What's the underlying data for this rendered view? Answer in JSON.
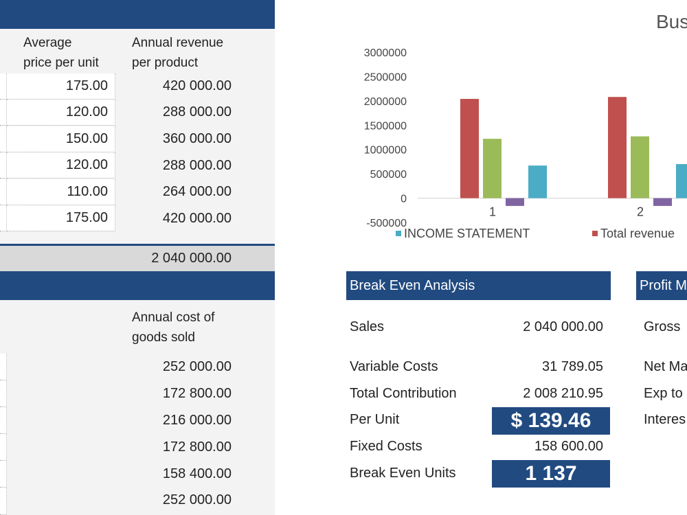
{
  "revenue_table": {
    "col_price_line1": "Average",
    "col_price_line2": "price per unit",
    "col_revenue_line1": "Annual revenue",
    "col_revenue_line2": "per product",
    "rows": [
      {
        "price": "175.00",
        "revenue": "420 000.00"
      },
      {
        "price": "120.00",
        "revenue": "288 000.00"
      },
      {
        "price": "150.00",
        "revenue": "360 000.00"
      },
      {
        "price": "120.00",
        "revenue": "288 000.00"
      },
      {
        "price": "110.00",
        "revenue": "264 000.00"
      },
      {
        "price": "175.00",
        "revenue": "420 000.00"
      }
    ],
    "total": "2 040 000.00"
  },
  "cogs_table": {
    "col_line1": "Annual cost of",
    "col_line2": "goods sold",
    "rows": [
      "252 000.00",
      "172 800.00",
      "216 000.00",
      "172 800.00",
      "158 400.00",
      "252 000.00"
    ]
  },
  "chart_title": "Bus",
  "chart_data": {
    "type": "bar",
    "categories": [
      "1",
      "2"
    ],
    "ylim": [
      -500000,
      3000000
    ],
    "yticks": [
      "3000000",
      "2500000",
      "2000000",
      "1500000",
      "1000000",
      "500000",
      "0",
      "-500000"
    ],
    "series": [
      {
        "name": "Total revenue",
        "color": "#c0504d",
        "values": [
          2040000,
          2080000
        ]
      },
      {
        "name": "",
        "color": "#9bbb59",
        "values": [
          1220000,
          1270000
        ]
      },
      {
        "name": "",
        "color": "#8064a2",
        "values": [
          -160000,
          -160000
        ]
      },
      {
        "name": "INCOME STATEMENT",
        "color": "#4bacc6",
        "values": [
          670000,
          700000
        ]
      }
    ],
    "legend": [
      {
        "label": "INCOME STATEMENT",
        "color": "#4bacc6"
      },
      {
        "label": "Total revenue",
        "color": "#c0504d"
      }
    ]
  },
  "break_even": {
    "title": "Break Even Analysis",
    "sales_label": "Sales",
    "sales_value": "2 040 000.00",
    "variable_label": "Variable Costs",
    "variable_value": "31 789.05",
    "contribution_label": "Total Contribution",
    "contribution_value": "2 008 210.95",
    "per_unit_label": "Per Unit",
    "per_unit_value": "$ 139.46",
    "fixed_label": "Fixed Costs",
    "fixed_value": "158 600.00",
    "units_label": "Break Even Units",
    "units_value": "1 137"
  },
  "profit_margin": {
    "title": "Profit M",
    "items": [
      "Gross",
      "Net Ma",
      "Exp to",
      "Interes"
    ]
  },
  "colors": {
    "header_blue": "#214a80"
  }
}
